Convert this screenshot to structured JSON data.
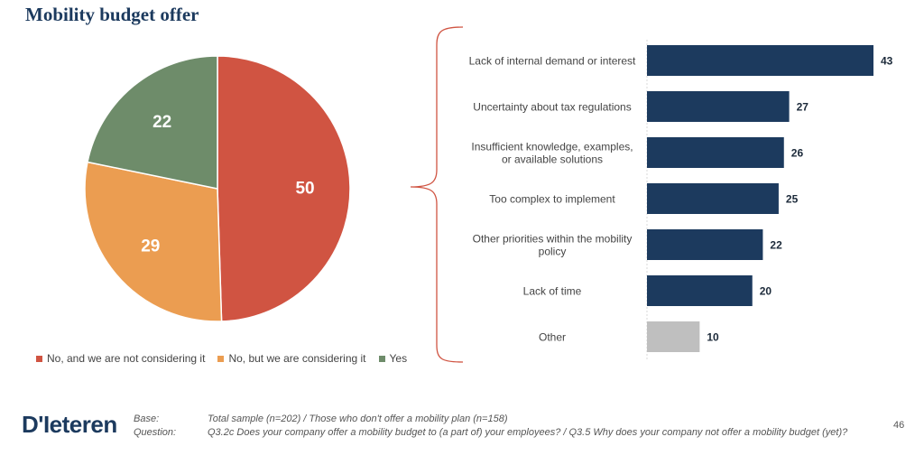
{
  "title": "Mobility budget offer",
  "pie": {
    "type": "pie",
    "slices": [
      {
        "label": "No, and we are not considering it",
        "value": 50,
        "color": "#d05442"
      },
      {
        "label": "No, but we are considering it",
        "value": 29,
        "color": "#eb9d51"
      },
      {
        "label": "Yes",
        "value": 22,
        "color": "#6e8c6a"
      }
    ]
  },
  "chart_data": [
    {
      "type": "pie",
      "title": "Mobility budget offer",
      "categories": [
        "No, and we are not considering it",
        "No, but we are considering it",
        "Yes"
      ],
      "values": [
        50,
        29,
        22
      ]
    },
    {
      "type": "bar",
      "orientation": "horizontal",
      "categories": [
        "Lack of internal demand or interest",
        "Uncertainty about tax regulations",
        "Insufficient knowledge, examples, or available solutions",
        "Too complex to implement",
        "Other priorities within the mobility policy",
        "Lack of time",
        "Other"
      ],
      "values": [
        43,
        27,
        26,
        25,
        22,
        20,
        10
      ],
      "xlim": [
        0,
        50
      ]
    }
  ],
  "bars": {
    "items": [
      {
        "label_lines": [
          "Lack of internal demand or interest"
        ],
        "value": 43,
        "color": "#1c3a5e"
      },
      {
        "label_lines": [
          "Uncertainty about tax regulations"
        ],
        "value": 27,
        "color": "#1c3a5e"
      },
      {
        "label_lines": [
          "Insufficient knowledge, examples,",
          "or available solutions"
        ],
        "value": 26,
        "color": "#1c3a5e"
      },
      {
        "label_lines": [
          "Too complex to implement"
        ],
        "value": 25,
        "color": "#1c3a5e"
      },
      {
        "label_lines": [
          "Other priorities within the mobility",
          "policy"
        ],
        "value": 22,
        "color": "#1c3a5e"
      },
      {
        "label_lines": [
          "Lack of time"
        ],
        "value": 20,
        "color": "#1c3a5e"
      },
      {
        "label_lines": [
          "Other"
        ],
        "value": 10,
        "color": "#bfbfbf"
      }
    ]
  },
  "colors": {
    "brace": "#d05442",
    "accent": "#1c3a5e"
  },
  "footer": {
    "logo": "D'Ieteren",
    "base_key": "Base:",
    "base_value": "Total sample (n=202) / Those who don't offer a mobility plan (n=158)",
    "question_key": "Question:",
    "question_value": "Q3.2c Does your company offer a mobility budget to (a part of) your employees? / Q3.5 Why does your company not offer a mobility budget (yet)?",
    "page_number": "46"
  }
}
